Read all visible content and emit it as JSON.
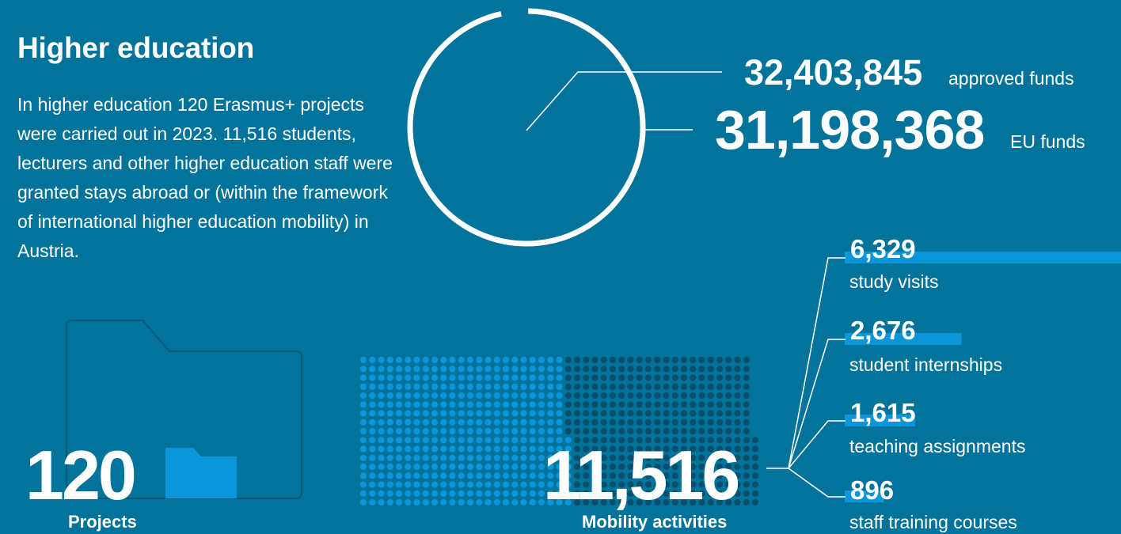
{
  "page": {
    "title": "Higher education",
    "intro": "In higher education 120 Erasmus+ projects were carried out in 2023. 11,516 students, lecturers and other higher education staff were granted stays abroad or (within the framework of international higher education mobility) in Austria."
  },
  "funds": {
    "approved_value": "32,403,845",
    "approved_label": "approved funds",
    "eu_value": "31,198,368",
    "eu_label": "EU funds"
  },
  "projects": {
    "value": "120",
    "label": "Projects"
  },
  "mobility": {
    "value": "11,516",
    "label": "Mobility activities"
  },
  "chart_data": {
    "type": "bar",
    "categories": [
      "study visits",
      "student internships",
      "teaching assignments",
      "staff training courses"
    ],
    "value_labels": [
      "6,329",
      "2,676",
      "1,615",
      "896"
    ],
    "values": [
      6329,
      2676,
      1615,
      896
    ],
    "total": 11516
  },
  "ring": {
    "approved": 32403845,
    "eu": 31198368
  },
  "colors": {
    "background": "#02739a",
    "accent": "#0b96dc",
    "dot_dark": "#0b4f6c",
    "icon_outline": "#0c5878",
    "white": "#ffffff"
  }
}
